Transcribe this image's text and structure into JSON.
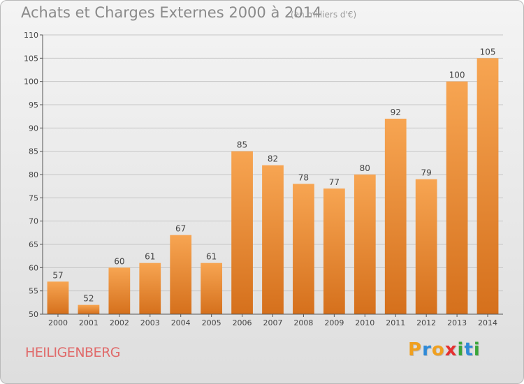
{
  "header": {
    "title": "Achats et Charges Externes 2000 à 2014",
    "subtitle": "(en milliers d'€)"
  },
  "footer": {
    "commune": "HEILIGENBERG",
    "logo_letters": [
      "P",
      "r",
      "o",
      "x",
      "i",
      "t",
      "i"
    ],
    "logo_colors": [
      "#f0a020",
      "#2f8ad8",
      "#f0a020",
      "#e53030",
      "#3aa63a",
      "#2f8ad8",
      "#3aa63a"
    ]
  },
  "colors": {
    "bar_light": "#f7a552",
    "bar_dark": "#d5701c",
    "grid": "#c6c6c6",
    "axis": "#555555"
  },
  "chart_data": {
    "type": "bar",
    "title": "Achats et Charges Externes 2000 à 2014",
    "subtitle": "(en milliers d'€)",
    "categories": [
      "2000",
      "2001",
      "2002",
      "2003",
      "2004",
      "2005",
      "2006",
      "2007",
      "2008",
      "2009",
      "2010",
      "2011",
      "2012",
      "2013",
      "2014"
    ],
    "values": [
      57,
      52,
      60,
      61,
      67,
      61,
      85,
      82,
      78,
      77,
      80,
      92,
      79,
      100,
      105
    ],
    "ylim": [
      50,
      110
    ],
    "yticks": [
      50,
      55,
      60,
      65,
      70,
      75,
      80,
      85,
      90,
      95,
      100,
      105,
      110
    ],
    "grid": true,
    "legend": "none"
  }
}
